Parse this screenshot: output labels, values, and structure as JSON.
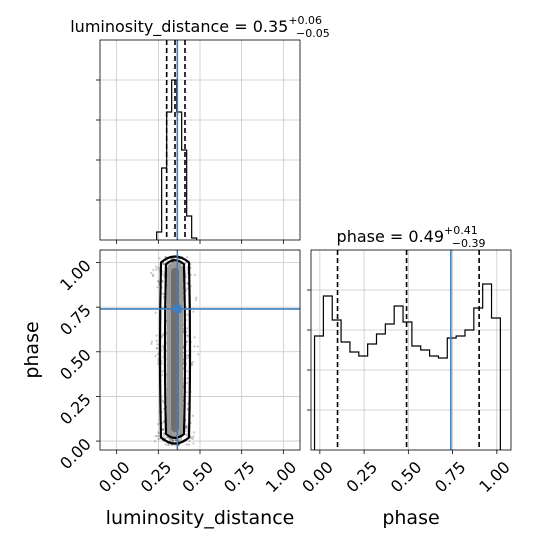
{
  "chart_data": [
    {
      "type": "histogram",
      "panel": "luminosity_distance marginal",
      "title": {
        "name": "luminosity_distance",
        "value": "0.35",
        "plus": "+0.06",
        "minus": "−0.05"
      },
      "xlim": [
        -0.1,
        1.1
      ],
      "bins": [
        [
          0.24,
          0.27,
          0.04
        ],
        [
          0.27,
          0.3,
          0.36
        ],
        [
          0.3,
          0.33,
          0.64
        ],
        [
          0.33,
          0.36,
          0.8
        ],
        [
          0.36,
          0.39,
          0.64
        ],
        [
          0.39,
          0.42,
          0.45
        ],
        [
          0.42,
          0.45,
          0.12
        ],
        [
          0.45,
          0.48,
          0.01
        ]
      ],
      "quantiles": [
        0.3,
        0.35,
        0.41
      ],
      "truth": 0.364,
      "grid": true
    },
    {
      "type": "scatter-density",
      "panel": "phase vs luminosity_distance",
      "xlabel": "luminosity_distance",
      "ylabel": "phase",
      "xlim": [
        -0.1,
        1.1
      ],
      "ylim": [
        -0.05,
        1.07
      ],
      "xticks": [
        "0.00",
        "0.25",
        "0.50",
        "0.75",
        "1.00"
      ],
      "yticks": [
        "0.00",
        "0.25",
        "0.50",
        "0.75",
        "1.00"
      ],
      "truth": {
        "x": 0.364,
        "y": 0.74
      },
      "samples_center": {
        "x": 0.35,
        "sd_x": 0.05
      },
      "phase_modes": [
        0.06,
        0.49,
        0.95
      ],
      "grid": true
    },
    {
      "type": "histogram",
      "panel": "phase marginal",
      "title": {
        "name": "phase",
        "value": "0.49",
        "plus": "+0.41",
        "minus": "−0.39"
      },
      "xlabel": "phase",
      "xlim": [
        -0.05,
        1.08
      ],
      "xticks": [
        "0.00",
        "0.25",
        "0.50",
        "0.75",
        "1.00"
      ],
      "bins": [
        [
          -0.03,
          0.02,
          0.57
        ],
        [
          0.02,
          0.07,
          0.77
        ],
        [
          0.07,
          0.12,
          0.65
        ],
        [
          0.12,
          0.17,
          0.54
        ],
        [
          0.17,
          0.22,
          0.49
        ],
        [
          0.22,
          0.27,
          0.47
        ],
        [
          0.27,
          0.32,
          0.53
        ],
        [
          0.32,
          0.37,
          0.58
        ],
        [
          0.37,
          0.42,
          0.63
        ],
        [
          0.42,
          0.47,
          0.72
        ],
        [
          0.47,
          0.52,
          0.64
        ],
        [
          0.52,
          0.57,
          0.52
        ],
        [
          0.57,
          0.62,
          0.5
        ],
        [
          0.62,
          0.67,
          0.47
        ],
        [
          0.67,
          0.72,
          0.46
        ],
        [
          0.72,
          0.77,
          0.56
        ],
        [
          0.77,
          0.82,
          0.57
        ],
        [
          0.82,
          0.87,
          0.6
        ],
        [
          0.87,
          0.92,
          0.71
        ],
        [
          0.92,
          0.97,
          0.83
        ],
        [
          0.97,
          1.02,
          0.66
        ]
      ],
      "quantiles": [
        0.1,
        0.49,
        0.9
      ],
      "truth": 0.74,
      "grid": true
    }
  ]
}
